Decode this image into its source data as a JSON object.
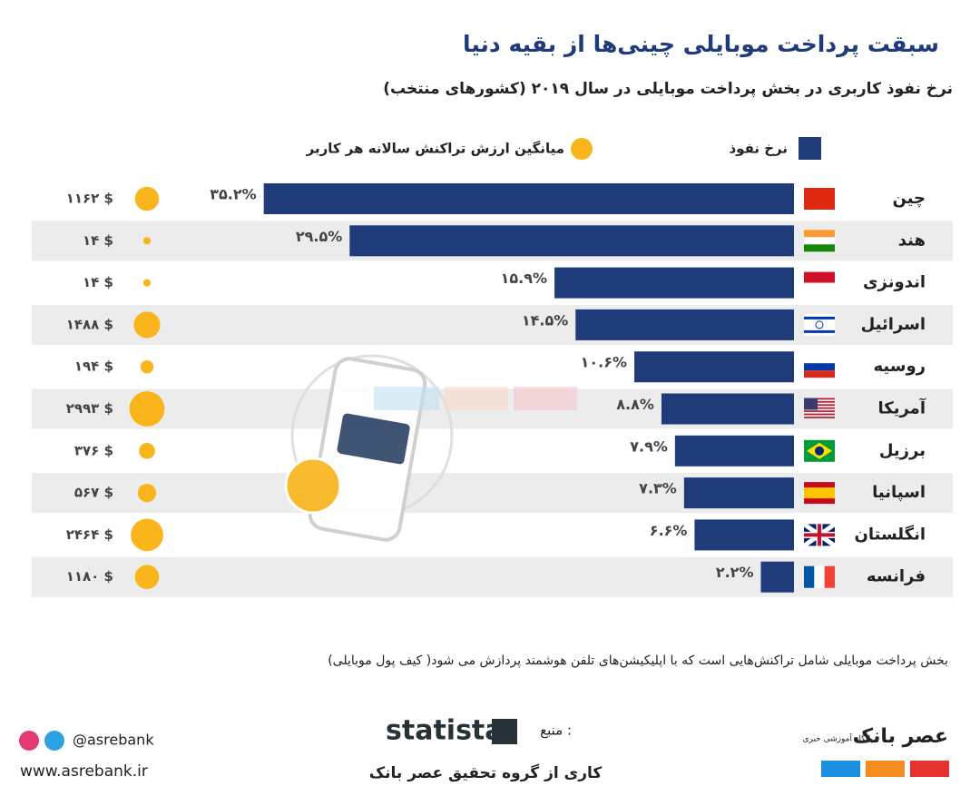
{
  "header": {
    "title": "سبقت پرداخت موبایلی چینی‌ها از بقیه دنیا",
    "subtitle": "نرخ نفوذ کاربری در بخش پرداخت موبایلی در سال ۲۰۱۹ (کشورهای منتخب)"
  },
  "chart_data": {
    "type": "bar",
    "categories": [
      "چین",
      "هند",
      "اندونزی",
      "اسرائیل",
      "روسیه",
      "آمریکا",
      "برزیل",
      "اسپانیا",
      "انگلستان",
      "فرانسه"
    ],
    "series": [
      {
        "name": "نرخ نفوذ",
        "color": "#1f3b7a",
        "values": [
          35.2,
          29.5,
          15.9,
          14.5,
          10.6,
          8.8,
          7.9,
          7.3,
          6.6,
          2.2
        ],
        "value_labels": [
          "۳۵.۲%",
          "۲۹.۵%",
          "۱۵.۹%",
          "۱۴.۵%",
          "۱۰.۶%",
          "۸.۸%",
          "۷.۹%",
          "۷.۳%",
          "۶.۶%",
          "۲.۲%"
        ]
      },
      {
        "name": "میانگین ارزش تراکنش سالانه هر کاربر",
        "color": "#f9b51b",
        "values": [
          1162,
          14,
          14,
          1488,
          194,
          2993,
          376,
          567,
          2464,
          1180
        ],
        "value_labels": [
          "۱۱۶۲ $",
          "۱۴ $",
          "۱۴ $",
          "۱۴۸۸ $",
          "۱۹۴ $",
          "۲۹۹۳ $",
          "۳۷۶ $",
          "۵۶۷ $",
          "۲۴۶۴ $",
          "۱۱۸۰ $"
        ]
      }
    ]
  },
  "footer": {
    "note": "بخش پرداخت موبایلی شامل تراکنش‌هایی است که با اپلیکیشن‌های تلفن هوشمند پردازش می شود( کیف پول موبایلی)",
    "source_label": "منبع :",
    "source": "statista",
    "handle": "@asrebank",
    "website": "www.asrebank.ir",
    "credit": "کاری از گروه تحقیق عصر بانک",
    "logo": "عصر بانک",
    "logo_tagline": "پایگاه آموزشی خبری"
  }
}
